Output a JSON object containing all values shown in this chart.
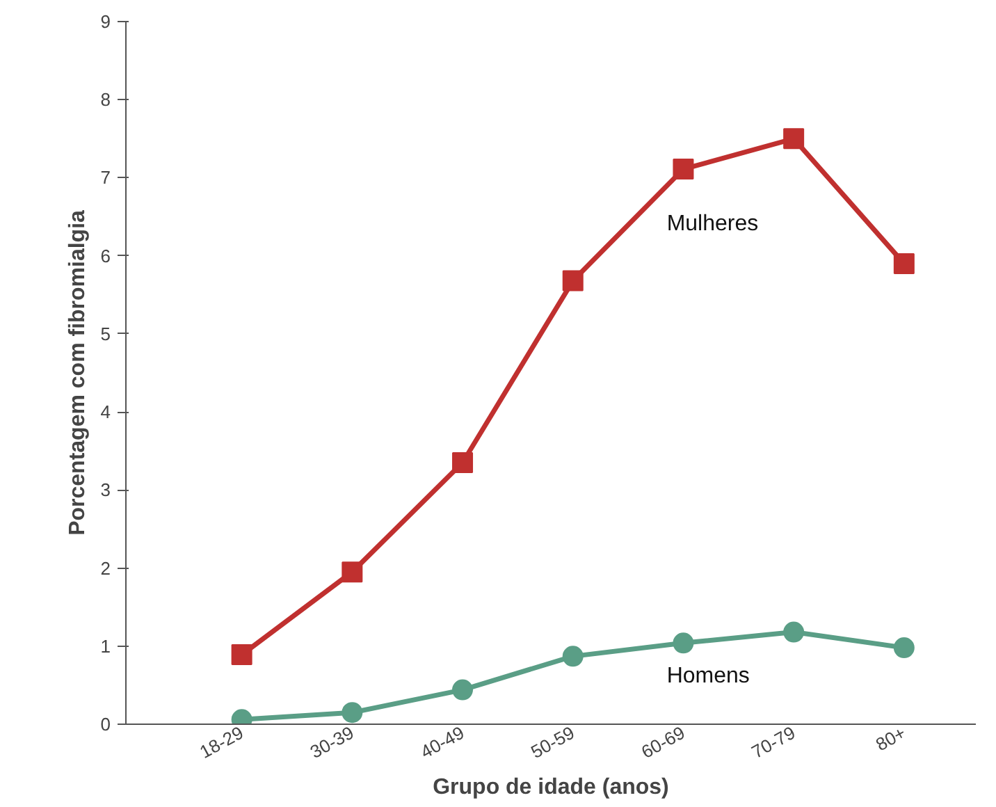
{
  "chart_data": {
    "type": "line",
    "xlabel": "Grupo de idade (anos)",
    "ylabel": "Porcentagem com fibromialgia",
    "categories": [
      "18-29",
      "30-39",
      "40-49",
      "50-59",
      "60-69",
      "70-79",
      "80+"
    ],
    "series": [
      {
        "name": "Mulheres",
        "color": "#c0302f",
        "marker": "square",
        "values": [
          0.89,
          1.95,
          3.35,
          5.68,
          7.11,
          7.5,
          5.9
        ]
      },
      {
        "name": "Homens",
        "color": "#5a9e86",
        "marker": "circle",
        "values": [
          0.06,
          0.15,
          0.44,
          0.87,
          1.04,
          1.18,
          0.98
        ]
      }
    ],
    "ylim": [
      0,
      9
    ],
    "yticks": [
      0,
      1,
      2,
      3,
      4,
      5,
      6,
      7,
      8,
      9
    ],
    "grid": false,
    "line_style": "solid"
  }
}
